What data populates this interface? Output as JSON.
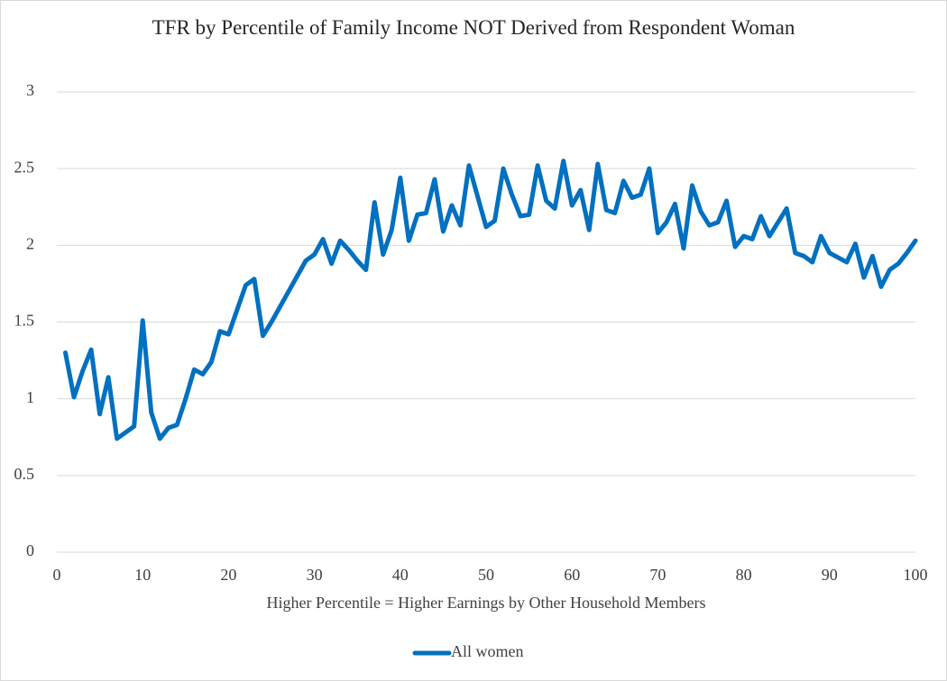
{
  "chart_data": {
    "type": "line",
    "title": "TFR by Percentile of Family Income NOT Derived from Respondent Woman",
    "x_label": "Higher Percentile = Higher Earnings by Other Household Members",
    "x": [
      1,
      2,
      3,
      4,
      5,
      6,
      7,
      8,
      9,
      10,
      11,
      12,
      13,
      14,
      15,
      16,
      17,
      18,
      19,
      20,
      21,
      22,
      23,
      24,
      25,
      26,
      27,
      28,
      29,
      30,
      31,
      32,
      33,
      34,
      35,
      36,
      37,
      38,
      39,
      40,
      41,
      42,
      43,
      44,
      45,
      46,
      47,
      48,
      49,
      50,
      51,
      52,
      53,
      54,
      55,
      56,
      57,
      58,
      59,
      60,
      61,
      62,
      63,
      64,
      65,
      66,
      67,
      68,
      69,
      70,
      71,
      72,
      73,
      74,
      75,
      76,
      77,
      78,
      79,
      80,
      81,
      82,
      83,
      84,
      85,
      86,
      87,
      88,
      89,
      90,
      91,
      92,
      93,
      94,
      95,
      96,
      97,
      98,
      99,
      100
    ],
    "series": [
      {
        "name": "All women",
        "color": "#0070c0",
        "values": [
          1.3,
          1.01,
          1.18,
          1.32,
          0.9,
          1.14,
          0.74,
          0.78,
          0.82,
          1.51,
          0.91,
          0.74,
          0.81,
          0.83,
          1.0,
          1.19,
          1.16,
          1.24,
          1.44,
          1.42,
          1.58,
          1.74,
          1.78,
          1.41,
          1.5,
          1.6,
          1.7,
          1.8,
          1.9,
          1.94,
          2.04,
          1.88,
          2.03,
          1.97,
          1.9,
          1.84,
          2.28,
          1.94,
          2.1,
          2.44,
          2.03,
          2.2,
          2.21,
          2.43,
          2.09,
          2.26,
          2.13,
          2.52,
          2.32,
          2.12,
          2.16,
          2.5,
          2.33,
          2.19,
          2.2,
          2.52,
          2.29,
          2.24,
          2.55,
          2.26,
          2.36,
          2.1,
          2.53,
          2.23,
          2.21,
          2.42,
          2.31,
          2.33,
          2.5,
          2.08,
          2.15,
          2.27,
          1.98,
          2.39,
          2.22,
          2.13,
          2.15,
          2.29,
          1.99,
          2.06,
          2.04,
          2.19,
          2.06,
          2.15,
          2.24,
          1.95,
          1.93,
          1.89,
          2.06,
          1.95,
          1.92,
          1.89,
          2.01,
          1.79,
          1.93,
          1.73,
          1.84,
          1.88,
          1.95,
          2.03
        ]
      }
    ],
    "xlim": [
      0,
      100
    ],
    "xticks": [
      0,
      10,
      20,
      30,
      40,
      50,
      60,
      70,
      80,
      90,
      100
    ],
    "ylim": [
      0,
      3
    ],
    "yticks": [
      0,
      0.5,
      1,
      1.5,
      2,
      2.5,
      3
    ],
    "grid": true,
    "legend": "bottom"
  }
}
